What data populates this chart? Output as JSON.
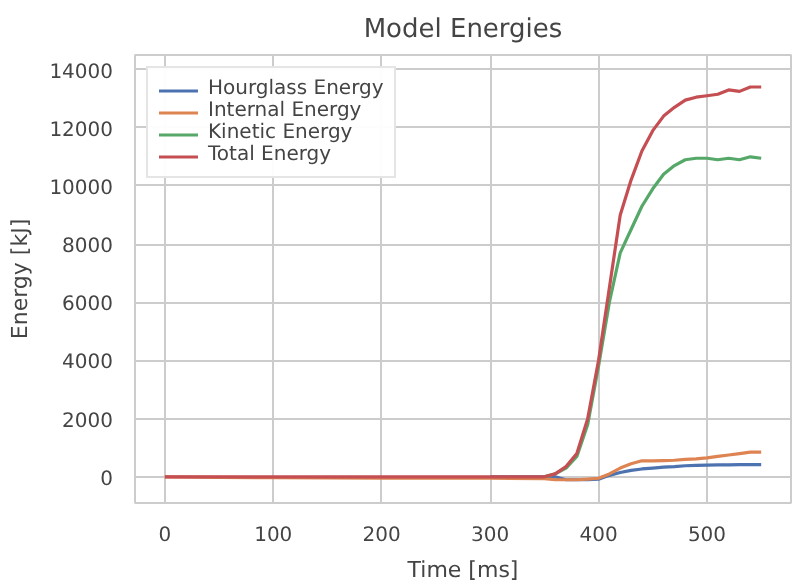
{
  "chart_data": {
    "type": "line",
    "title": "Model Energies",
    "xlabel": "Time [ms]",
    "ylabel": "Energy [kJ]",
    "xlim": [
      -27.5,
      577.5
    ],
    "ylim": [
      -900,
      14500
    ],
    "xticks": [
      0,
      100,
      200,
      300,
      400,
      500
    ],
    "yticks": [
      0,
      2000,
      4000,
      6000,
      8000,
      10000,
      12000,
      14000
    ],
    "grid": true,
    "legend": "top left",
    "line_style": "solid",
    "x": [
      0,
      50,
      100,
      150,
      200,
      250,
      300,
      350,
      360,
      370,
      380,
      390,
      400,
      410,
      420,
      430,
      440,
      450,
      460,
      470,
      480,
      490,
      500,
      510,
      520,
      530,
      540,
      550
    ],
    "series": [
      {
        "name": "Hourglass Energy",
        "color": "#4c72b0",
        "x": [
          300,
          350,
          360,
          370,
          380,
          390,
          400,
          410,
          420,
          430,
          440,
          450,
          460,
          470,
          480,
          490,
          500,
          510,
          520,
          530,
          540,
          550
        ],
        "values": [
          0,
          0,
          0,
          -100,
          -100,
          -100,
          -80,
          50,
          150,
          220,
          270,
          300,
          330,
          350,
          380,
          390,
          400,
          410,
          410,
          420,
          420,
          420
        ]
      },
      {
        "name": "Internal Energy",
        "color": "#dd8452",
        "values": [
          0,
          -20,
          -30,
          -40,
          -50,
          -50,
          -50,
          -60,
          -100,
          -100,
          -100,
          -80,
          -50,
          100,
          300,
          450,
          550,
          550,
          560,
          570,
          600,
          620,
          650,
          700,
          750,
          800,
          850,
          850
        ]
      },
      {
        "name": "Kinetic Energy",
        "color": "#55a868",
        "x": [
          350,
          360,
          370,
          380,
          390,
          400,
          410,
          420,
          430,
          440,
          450,
          460,
          470,
          480,
          490,
          500,
          510,
          520,
          530,
          540,
          550
        ],
        "values": [
          0,
          100,
          300,
          700,
          1800,
          3800,
          6000,
          7700,
          8500,
          9300,
          9900,
          10400,
          10700,
          10900,
          10950,
          10950,
          10900,
          10950,
          10900,
          11000,
          10950
        ]
      },
      {
        "name": "Total Energy",
        "color": "#c44e52",
        "values": [
          0,
          0,
          0,
          0,
          0,
          0,
          0,
          0,
          100,
          350,
          800,
          2000,
          4000,
          6500,
          9000,
          10200,
          11200,
          11900,
          12400,
          12700,
          12950,
          13050,
          13100,
          13150,
          13300,
          13250,
          13400,
          13400
        ]
      }
    ]
  }
}
